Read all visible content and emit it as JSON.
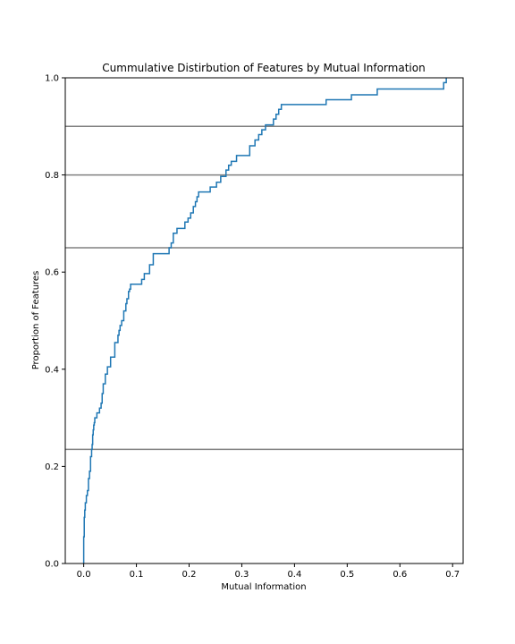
{
  "chart_data": {
    "type": "line",
    "title": "Cummulative Distirbution of Features by Mutual Information",
    "xlabel": "Mutual Information",
    "ylabel": "Proportion of Features",
    "xlim": [
      -0.035,
      0.72
    ],
    "ylim": [
      0.0,
      1.0
    ],
    "grid": false,
    "legend": "none",
    "x_ticks": [
      0.0,
      0.1,
      0.2,
      0.3,
      0.4,
      0.5,
      0.6,
      0.7
    ],
    "x_tick_labels": [
      "0.0",
      "0.1",
      "0.2",
      "0.3",
      "0.4",
      "0.5",
      "0.6",
      "0.7"
    ],
    "y_ticks": [
      0.0,
      0.2,
      0.4,
      0.6,
      0.8,
      1.0
    ],
    "y_tick_labels": [
      "0.0",
      "0.2",
      "0.4",
      "0.6",
      "0.8",
      "1.0"
    ],
    "reference_lines": [
      0.235,
      0.65,
      0.8,
      0.9
    ],
    "reference_line_color": "#808080",
    "series_color": "#1f77b4",
    "series": [
      {
        "x": [
          0.0,
          0.001,
          0.002,
          0.003,
          0.005,
          0.007,
          0.009,
          0.011,
          0.013,
          0.015,
          0.016,
          0.017,
          0.018,
          0.019,
          0.02,
          0.021,
          0.023,
          0.025,
          0.03,
          0.033,
          0.035,
          0.037,
          0.039,
          0.041,
          0.045,
          0.051,
          0.059,
          0.065,
          0.067,
          0.069,
          0.072,
          0.076,
          0.08,
          0.082,
          0.085,
          0.087,
          0.089,
          0.091,
          0.095,
          0.11,
          0.115,
          0.125,
          0.132,
          0.14,
          0.162,
          0.166,
          0.17,
          0.177,
          0.192,
          0.198,
          0.203,
          0.208,
          0.212,
          0.215,
          0.218,
          0.221,
          0.24,
          0.252,
          0.26,
          0.27,
          0.275,
          0.28,
          0.29,
          0.315,
          0.325,
          0.332,
          0.338,
          0.345,
          0.36,
          0.365,
          0.37,
          0.375,
          0.46,
          0.508,
          0.557,
          0.683,
          0.688
        ],
        "y": [
          0.055,
          0.095,
          0.11,
          0.125,
          0.14,
          0.15,
          0.175,
          0.19,
          0.22,
          0.235,
          0.245,
          0.265,
          0.275,
          0.285,
          0.29,
          0.3,
          0.3,
          0.31,
          0.32,
          0.33,
          0.35,
          0.37,
          0.37,
          0.39,
          0.405,
          0.425,
          0.455,
          0.47,
          0.48,
          0.49,
          0.5,
          0.52,
          0.535,
          0.545,
          0.56,
          0.565,
          0.575,
          0.575,
          0.575,
          0.585,
          0.597,
          0.615,
          0.638,
          0.638,
          0.65,
          0.66,
          0.68,
          0.69,
          0.703,
          0.711,
          0.722,
          0.735,
          0.745,
          0.755,
          0.765,
          0.765,
          0.775,
          0.785,
          0.797,
          0.81,
          0.82,
          0.828,
          0.84,
          0.86,
          0.872,
          0.883,
          0.893,
          0.903,
          0.915,
          0.925,
          0.935,
          0.945,
          0.955,
          0.965,
          0.977,
          0.99,
          1.0
        ]
      }
    ]
  }
}
